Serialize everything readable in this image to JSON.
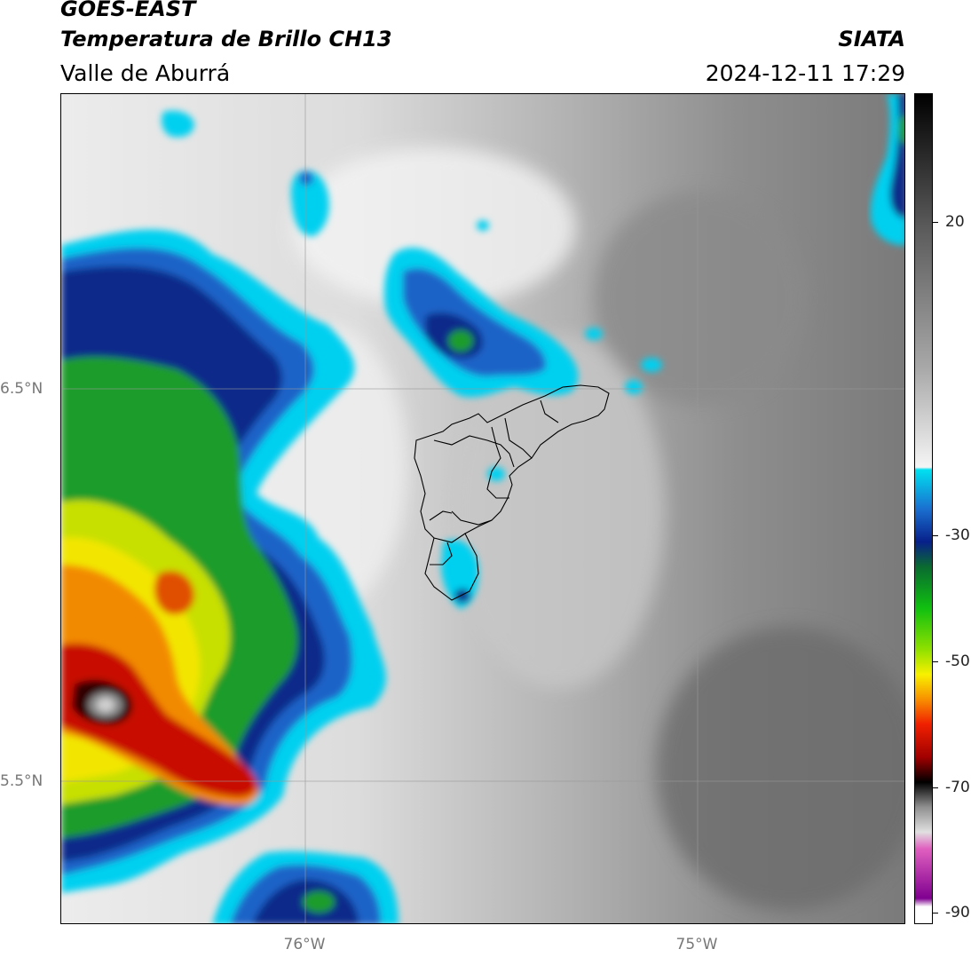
{
  "header": {
    "satellite": "GOES-EAST",
    "product": "Temperatura de Brillo CH13",
    "region": "Valle de Aburrá",
    "organization": "SIATA",
    "timestamp": "2024-12-11 17:29"
  },
  "map": {
    "lat_labels": [
      "6.5°N",
      "5.5°N"
    ],
    "lon_labels": [
      "76°W",
      "75°W"
    ]
  },
  "colorbar": {
    "tick_labels": [
      "20",
      "-30",
      "-50",
      "-70",
      "-90"
    ]
  },
  "colors": {
    "cold_cloud_cyan": "#00d8f0",
    "deep_blue": "#0a2a8a",
    "green": "#1f9c2a",
    "yellow": "#f2e600",
    "orange": "#f28a00",
    "red": "#c81000",
    "background_gray": "#a0a0a0"
  }
}
